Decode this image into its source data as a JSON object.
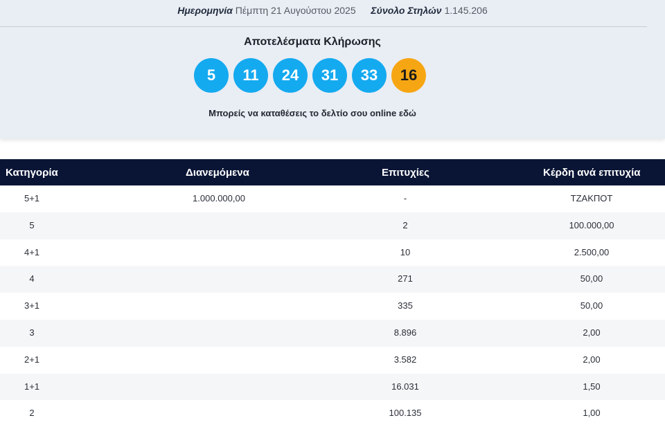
{
  "header": {
    "date_label": "Ημερομηνία",
    "date_value": "Πέμπτη 21 Αυγούστου 2025",
    "total_label": "Σύνολο Στηλών",
    "total_value": "1.145.206"
  },
  "results": {
    "title": "Αποτελέσματα Κλήρωσης",
    "numbers": [
      "5",
      "11",
      "24",
      "31",
      "33"
    ],
    "joker": "16",
    "online_text": "Μπορείς να καταθέσεις το δελτίο σου online εδώ"
  },
  "colors": {
    "ball_blue": "#14aaf0",
    "ball_joker": "#f7a613",
    "table_header_bg": "#0a1535"
  },
  "table": {
    "headers": {
      "category": "Κατηγορία",
      "distributed": "Διανεμόμενα",
      "winners": "Επιτυχίες",
      "prize": "Κέρδη ανά επιτυχία"
    },
    "rows": [
      {
        "category": "5+1",
        "distributed": "1.000.000,00",
        "winners": "-",
        "prize": "ΤΖΑΚΠΟΤ"
      },
      {
        "category": "5",
        "distributed": "",
        "winners": "2",
        "prize": "100.000,00"
      },
      {
        "category": "4+1",
        "distributed": "",
        "winners": "10",
        "prize": "2.500,00"
      },
      {
        "category": "4",
        "distributed": "",
        "winners": "271",
        "prize": "50,00"
      },
      {
        "category": "3+1",
        "distributed": "",
        "winners": "335",
        "prize": "50,00"
      },
      {
        "category": "3",
        "distributed": "",
        "winners": "8.896",
        "prize": "2,00"
      },
      {
        "category": "2+1",
        "distributed": "",
        "winners": "3.582",
        "prize": "2,00"
      },
      {
        "category": "1+1",
        "distributed": "",
        "winners": "16.031",
        "prize": "1,50"
      },
      {
        "category": "2",
        "distributed": "",
        "winners": "100.135",
        "prize": "1,00"
      }
    ]
  }
}
